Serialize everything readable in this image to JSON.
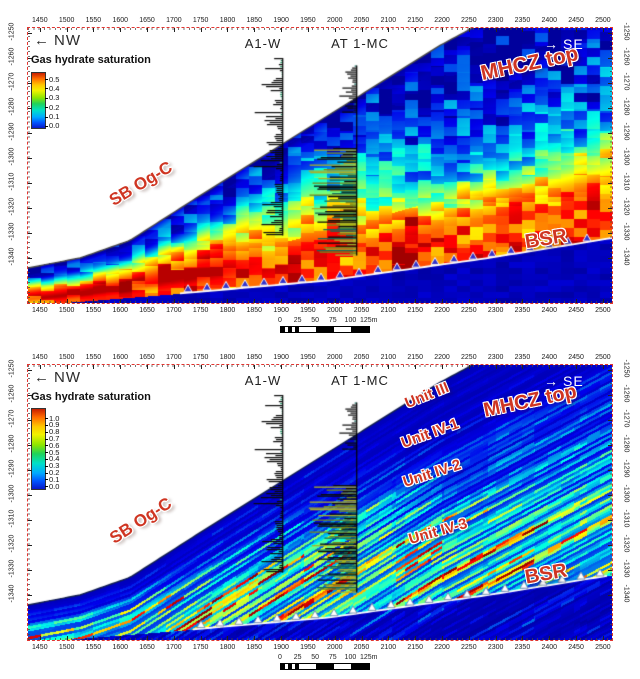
{
  "panels": [
    {
      "nw_arrow": "←",
      "nw": "NW",
      "se_arrow": "→",
      "se": "SE",
      "legend_title": "Gas hydrate saturation",
      "legend_ticks": [
        "0.5",
        "0.4",
        "0.3",
        "0.2",
        "0.1",
        "0.0"
      ],
      "well1": "A1-W",
      "well2": "AT 1-MC",
      "mhcz": "MHCZ top",
      "sb": "SB Og-C",
      "bsr": "BSR",
      "units": [],
      "x_ticks": [
        "1450",
        "1500",
        "1550",
        "1600",
        "1650",
        "1700",
        "1750",
        "1800",
        "1850",
        "1900",
        "1950",
        "2000",
        "2050",
        "2100",
        "2150",
        "2200",
        "2250",
        "2300",
        "2350",
        "2400",
        "2450",
        "2500"
      ],
      "y_ticks": [
        "-1250",
        "-1260",
        "-1270",
        "-1280",
        "-1290",
        "-1300",
        "-1310",
        "-1320",
        "-1330",
        "-1340"
      ],
      "scalebar": [
        "0",
        "25",
        "50",
        "75",
        "100",
        "125m"
      ]
    },
    {
      "nw_arrow": "←",
      "nw": "NW",
      "se_arrow": "→",
      "se": "SE",
      "legend_title": "Gas hydrate saturation",
      "legend_ticks": [
        "1.0",
        "0.9",
        "0.8",
        "0.7",
        "0.6",
        "0.5",
        "0.4",
        "0.3",
        "0.2",
        "0.1",
        "0.0"
      ],
      "well1": "A1-W",
      "well2": "AT 1-MC",
      "mhcz": "MHCZ top",
      "sb": "SB Og-C",
      "bsr": "BSR",
      "units": [
        "Unit III",
        "Unit IV-1",
        "Unit IV-2",
        "Unit IV-3"
      ],
      "x_ticks": [
        "1450",
        "1500",
        "1550",
        "1600",
        "1650",
        "1700",
        "1750",
        "1800",
        "1850",
        "1900",
        "1950",
        "2000",
        "2050",
        "2100",
        "2150",
        "2200",
        "2250",
        "2300",
        "2350",
        "2400",
        "2450",
        "2500"
      ],
      "y_ticks": [
        "-1250",
        "-1260",
        "-1270",
        "-1280",
        "-1290",
        "-1300",
        "-1310",
        "-1320",
        "-1330",
        "-1340"
      ],
      "scalebar": [
        "0",
        "25",
        "50",
        "75",
        "100",
        "125m"
      ]
    }
  ],
  "chart_data": [
    {
      "type": "heatmap",
      "panel": "top",
      "title": "Gas hydrate saturation",
      "xlabel": "",
      "ylabel": "",
      "colormap": "jet",
      "value_range": [
        0.0,
        0.5
      ],
      "colorbar_ticks": [
        0.5,
        0.4,
        0.3,
        0.2,
        0.1,
        0.0
      ],
      "x_range": [
        1428,
        2517
      ],
      "x_ticks": [
        1450,
        1500,
        1550,
        1600,
        1650,
        1700,
        1750,
        1800,
        1850,
        1900,
        1950,
        2000,
        2050,
        2100,
        2150,
        2200,
        2250,
        2300,
        2350,
        2400,
        2450,
        2500
      ],
      "depth_range": [
        -1248,
        -1358
      ],
      "depth_ticks": [
        -1250,
        -1260,
        -1270,
        -1280,
        -1290,
        -1300,
        -1310,
        -1320,
        -1330,
        -1340
      ],
      "direction": {
        "left": "NW",
        "right": "SE"
      },
      "wells": [
        {
          "name": "A1-W",
          "x": 1903,
          "log_top_depth": -1260,
          "log_bottom_depth": -1331
        },
        {
          "name": "AT 1-MC",
          "x": 2041,
          "log_top_depth": -1263,
          "log_bottom_depth": -1339,
          "dense_from_depth": -1296
        }
      ],
      "seafloor_profile": [
        [
          1428,
          -1344
        ],
        [
          1525,
          -1340
        ],
        [
          1618,
          -1333
        ],
        [
          1749,
          -1315
        ],
        [
          1898,
          -1295
        ],
        [
          2047,
          -1275
        ],
        [
          2196,
          -1255
        ],
        [
          2517,
          -1218
        ]
      ],
      "bsr_profile": [
        [
          1428,
          -1359
        ],
        [
          1721,
          -1354
        ],
        [
          1988,
          -1349
        ],
        [
          2286,
          -1340
        ],
        [
          2517,
          -1332
        ]
      ],
      "annotations": [
        "MHCZ top",
        "SB Og-C",
        "BSR"
      ],
      "texture": "smooth-blocky",
      "scale_bar_m": [
        0,
        25,
        50,
        75,
        100,
        125
      ]
    },
    {
      "type": "heatmap",
      "panel": "bottom",
      "title": "Gas hydrate saturation",
      "xlabel": "",
      "ylabel": "",
      "colormap": "jet",
      "value_range": [
        0.0,
        1.0
      ],
      "colorbar_ticks": [
        1.0,
        0.9,
        0.8,
        0.7,
        0.6,
        0.5,
        0.4,
        0.3,
        0.2,
        0.1,
        0.0
      ],
      "x_range": [
        1428,
        2517
      ],
      "x_ticks": [
        1450,
        1500,
        1550,
        1600,
        1650,
        1700,
        1750,
        1800,
        1850,
        1900,
        1950,
        2000,
        2050,
        2100,
        2150,
        2200,
        2250,
        2300,
        2350,
        2400,
        2450,
        2500
      ],
      "depth_range": [
        -1248,
        -1358
      ],
      "depth_ticks": [
        -1250,
        -1260,
        -1270,
        -1280,
        -1290,
        -1300,
        -1310,
        -1320,
        -1330,
        -1340
      ],
      "direction": {
        "left": "NW",
        "right": "SE"
      },
      "wells": [
        {
          "name": "A1-W",
          "x": 1903,
          "log_top_depth": -1260,
          "log_bottom_depth": -1331
        },
        {
          "name": "AT 1-MC",
          "x": 2041,
          "log_top_depth": -1263,
          "log_bottom_depth": -1339,
          "dense_from_depth": -1296
        }
      ],
      "seafloor_profile": [
        [
          1428,
          -1344
        ],
        [
          1525,
          -1340
        ],
        [
          1618,
          -1333
        ],
        [
          1749,
          -1315
        ],
        [
          1898,
          -1295
        ],
        [
          2047,
          -1275
        ],
        [
          2196,
          -1255
        ],
        [
          2517,
          -1218
        ]
      ],
      "bsr_profile": [
        [
          1428,
          -1359
        ],
        [
          1721,
          -1354
        ],
        [
          1988,
          -1349
        ],
        [
          2286,
          -1340
        ],
        [
          2517,
          -1332
        ]
      ],
      "annotations": [
        "MHCZ top",
        "SB Og-C",
        "BSR",
        "Unit III",
        "Unit IV-1",
        "Unit IV-2",
        "Unit IV-3"
      ],
      "texture": "thin-layered",
      "scale_bar_m": [
        0,
        25,
        50,
        75,
        100,
        125
      ]
    }
  ]
}
